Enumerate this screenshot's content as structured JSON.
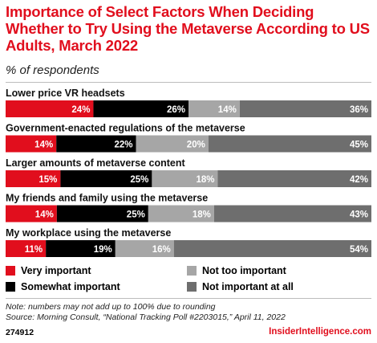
{
  "header": {
    "title": "Importance of Select Factors When Deciding Whether to Try Using the Metaverse According to US Adults, March 2022",
    "subtitle": "% of respondents"
  },
  "chart_data": {
    "type": "bar",
    "orientation": "horizontal",
    "stacked": true,
    "categories": [
      "Lower price VR headsets",
      "Government-enacted regulations of the metaverse",
      "Larger amounts of metaverse content",
      "My friends and family using the metaverse",
      "My workplace using the metaverse"
    ],
    "series": [
      {
        "name": "Very important",
        "color": "#e10e1d",
        "values": [
          24,
          14,
          15,
          14,
          11
        ]
      },
      {
        "name": "Somewhat important",
        "color": "#000000",
        "values": [
          26,
          22,
          25,
          25,
          19
        ]
      },
      {
        "name": "Not too important",
        "color": "#a6a6a6",
        "values": [
          14,
          20,
          18,
          18,
          16
        ]
      },
      {
        "name": "Not important at all",
        "color": "#6e6e6e",
        "values": [
          36,
          45,
          42,
          43,
          54
        ]
      }
    ],
    "value_suffix": "%",
    "legend_position": "bottom"
  },
  "legend": [
    {
      "label": "Very important",
      "color": "#e10e1d"
    },
    {
      "label": "Somewhat important",
      "color": "#000000"
    },
    {
      "label": "Not too important",
      "color": "#a6a6a6"
    },
    {
      "label": "Not important at all",
      "color": "#6e6e6e"
    }
  ],
  "footer": {
    "note": "Note: numbers may not add up to 100% due to rounding",
    "source": "Source: Morning Consult, “National Tracking Poll #2203015,” April 11, 2022",
    "chart_id": "274912",
    "brand": "InsiderIntelligence.com"
  }
}
